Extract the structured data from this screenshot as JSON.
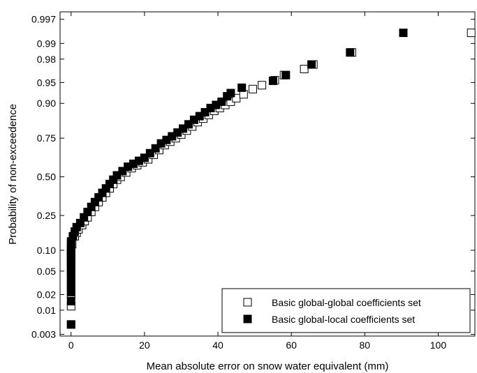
{
  "chart_data": {
    "type": "scatter",
    "title": "",
    "xlabel": "Mean absolute error on snow water equivalent (mm)",
    "ylabel": "Probability of non-exceedence",
    "xlim": [
      -3,
      110
    ],
    "y_scale": "probability (normal)",
    "ylim": [
      0.003,
      0.997
    ],
    "grid": false,
    "legend_position": "bottom-right",
    "x_ticks": [
      0,
      20,
      40,
      60,
      80,
      100
    ],
    "x_tick_labels": [
      "0",
      "20",
      "40",
      "60",
      "80",
      "100"
    ],
    "y_ticks": [
      0.003,
      0.01,
      0.02,
      0.05,
      0.1,
      0.25,
      0.5,
      0.75,
      0.9,
      0.95,
      0.98,
      0.99,
      0.997
    ],
    "y_tick_labels": [
      "0.003",
      "0.01",
      "0.02",
      "0.05",
      "0.10",
      "0.25",
      "0.50",
      "0.75",
      "0.90",
      "0.95",
      "0.98",
      "0.99",
      "0.997"
    ],
    "series": [
      {
        "name": "Basic global-global coefficients set",
        "marker": "open-square",
        "color": "#000000",
        "points": [
          [
            0,
            0.005
          ],
          [
            0,
            0.012
          ],
          [
            0,
            0.02
          ],
          [
            0,
            0.03
          ],
          [
            0,
            0.04
          ],
          [
            0,
            0.05
          ],
          [
            0,
            0.06
          ],
          [
            0,
            0.07
          ],
          [
            0,
            0.08
          ],
          [
            0,
            0.09
          ],
          [
            0,
            0.1
          ],
          [
            0.3,
            0.12
          ],
          [
            1,
            0.15
          ],
          [
            1.5,
            0.165
          ],
          [
            2,
            0.18
          ],
          [
            3,
            0.2
          ],
          [
            3.7,
            0.22
          ],
          [
            4.5,
            0.24
          ],
          [
            5.5,
            0.27
          ],
          [
            6.5,
            0.3
          ],
          [
            7.5,
            0.33
          ],
          [
            8.5,
            0.36
          ],
          [
            9.5,
            0.39
          ],
          [
            10.5,
            0.42
          ],
          [
            11.5,
            0.45
          ],
          [
            12.5,
            0.48
          ],
          [
            13.5,
            0.5
          ],
          [
            15,
            0.53
          ],
          [
            16.5,
            0.56
          ],
          [
            18,
            0.58
          ],
          [
            19.5,
            0.6
          ],
          [
            21,
            0.62
          ],
          [
            22.5,
            0.65
          ],
          [
            24,
            0.68
          ],
          [
            25.5,
            0.71
          ],
          [
            27,
            0.73
          ],
          [
            28.5,
            0.75
          ],
          [
            30,
            0.77
          ],
          [
            31.5,
            0.79
          ],
          [
            33,
            0.81
          ],
          [
            34.5,
            0.83
          ],
          [
            36,
            0.845
          ],
          [
            37.5,
            0.86
          ],
          [
            39,
            0.875
          ],
          [
            40.5,
            0.885
          ],
          [
            42,
            0.895
          ],
          [
            43.5,
            0.905
          ],
          [
            45,
            0.915
          ],
          [
            47,
            0.925
          ],
          [
            49.5,
            0.937
          ],
          [
            52,
            0.945
          ],
          [
            55.5,
            0.954
          ],
          [
            58,
            0.962
          ],
          [
            63.5,
            0.97
          ],
          [
            66,
            0.975
          ],
          [
            76.5,
            0.985
          ],
          [
            109,
            0.994
          ]
        ]
      },
      {
        "name": "Basic global-local coefficients set",
        "marker": "filled-square",
        "color": "#000000",
        "points": [
          [
            0,
            0.005
          ],
          [
            0,
            0.015
          ],
          [
            0,
            0.022
          ],
          [
            0,
            0.028
          ],
          [
            0,
            0.035
          ],
          [
            0,
            0.045
          ],
          [
            0,
            0.055
          ],
          [
            0,
            0.065
          ],
          [
            0,
            0.075
          ],
          [
            0,
            0.085
          ],
          [
            0,
            0.095
          ],
          [
            0,
            0.105
          ],
          [
            0,
            0.12
          ],
          [
            0,
            0.13
          ],
          [
            0.5,
            0.15
          ],
          [
            1,
            0.17
          ],
          [
            1.5,
            0.19
          ],
          [
            2.5,
            0.21
          ],
          [
            3.5,
            0.24
          ],
          [
            4.5,
            0.27
          ],
          [
            5.5,
            0.3
          ],
          [
            6.5,
            0.33
          ],
          [
            7.5,
            0.36
          ],
          [
            8.5,
            0.39
          ],
          [
            9.5,
            0.42
          ],
          [
            10.5,
            0.45
          ],
          [
            11.5,
            0.48
          ],
          [
            12.5,
            0.51
          ],
          [
            14,
            0.54
          ],
          [
            15.5,
            0.57
          ],
          [
            17,
            0.59
          ],
          [
            18.5,
            0.61
          ],
          [
            20,
            0.63
          ],
          [
            21.5,
            0.66
          ],
          [
            23,
            0.69
          ],
          [
            24.5,
            0.72
          ],
          [
            26,
            0.74
          ],
          [
            27.5,
            0.76
          ],
          [
            29,
            0.78
          ],
          [
            30.5,
            0.8
          ],
          [
            32,
            0.82
          ],
          [
            33.5,
            0.84
          ],
          [
            35,
            0.855
          ],
          [
            36.5,
            0.87
          ],
          [
            38,
            0.885
          ],
          [
            39.5,
            0.895
          ],
          [
            41,
            0.905
          ],
          [
            42.5,
            0.92
          ],
          [
            43.5,
            0.928
          ],
          [
            46.5,
            0.94
          ],
          [
            55,
            0.953
          ],
          [
            58.5,
            0.962
          ],
          [
            65.5,
            0.975
          ],
          [
            76,
            0.985
          ],
          [
            90.5,
            0.994
          ]
        ]
      }
    ]
  }
}
